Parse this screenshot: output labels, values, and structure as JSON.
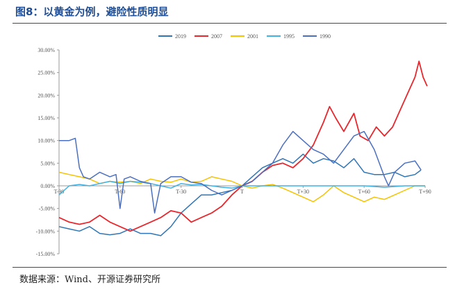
{
  "header": {
    "title": "图8：以黄金为例，避险性质明显"
  },
  "footer": {
    "source": "数据来源：Wind、开源证券研究所"
  },
  "chart_data": {
    "type": "line",
    "title": "",
    "xlabel": "",
    "ylabel": "",
    "ylim": [
      -15,
      30
    ],
    "y_ticks": [
      "30.00%",
      "25.00%",
      "20.00%",
      "15.00%",
      "10.00%",
      "5.00%",
      "0.00%",
      "-5.00%",
      "-10.00%",
      "-15.00%"
    ],
    "y_tick_values": [
      30,
      25,
      20,
      15,
      10,
      5,
      0,
      -5,
      -10,
      -15
    ],
    "xlim": [
      -90,
      90
    ],
    "x_ticks": [
      "T-90",
      "T-60",
      "T-30",
      "T",
      "T+30",
      "T+60",
      "T+90"
    ],
    "x_tick_values": [
      -90,
      -60,
      -30,
      0,
      30,
      60,
      90
    ],
    "grid": false,
    "legend": "top",
    "series": [
      {
        "name": "2019",
        "color": "#2e75b6",
        "points": [
          [
            -90,
            -9
          ],
          [
            -85,
            -9.5
          ],
          [
            -80,
            -10
          ],
          [
            -75,
            -9
          ],
          [
            -70,
            -10.5
          ],
          [
            -65,
            -10.8
          ],
          [
            -60,
            -10.5
          ],
          [
            -55,
            -9.5
          ],
          [
            -50,
            -10.5
          ],
          [
            -45,
            -10.5
          ],
          [
            -40,
            -11
          ],
          [
            -35,
            -9
          ],
          [
            -30,
            -6
          ],
          [
            -25,
            -4
          ],
          [
            -20,
            -2
          ],
          [
            -15,
            -2
          ],
          [
            -10,
            -1.5
          ],
          [
            -5,
            -1
          ],
          [
            0,
            0
          ],
          [
            5,
            2
          ],
          [
            10,
            4
          ],
          [
            15,
            5
          ],
          [
            20,
            6
          ],
          [
            25,
            5
          ],
          [
            30,
            7
          ],
          [
            35,
            5
          ],
          [
            40,
            6
          ],
          [
            45,
            5.5
          ],
          [
            50,
            4
          ],
          [
            55,
            6
          ],
          [
            60,
            3
          ],
          [
            65,
            2.5
          ],
          [
            70,
            2.5
          ],
          [
            75,
            3
          ],
          [
            80,
            2
          ],
          [
            85,
            2.5
          ],
          [
            88,
            3.5
          ]
        ]
      },
      {
        "name": "2007",
        "color": "#e8262c",
        "points": [
          [
            -90,
            -7
          ],
          [
            -85,
            -8
          ],
          [
            -80,
            -8.5
          ],
          [
            -75,
            -8
          ],
          [
            -70,
            -6.5
          ],
          [
            -65,
            -8
          ],
          [
            -60,
            -9
          ],
          [
            -55,
            -10
          ],
          [
            -50,
            -9
          ],
          [
            -45,
            -8
          ],
          [
            -40,
            -7
          ],
          [
            -35,
            -5.5
          ],
          [
            -30,
            -6
          ],
          [
            -25,
            -8
          ],
          [
            -20,
            -7
          ],
          [
            -15,
            -6
          ],
          [
            -10,
            -4.5
          ],
          [
            -5,
            -2
          ],
          [
            0,
            0
          ],
          [
            5,
            1
          ],
          [
            10,
            3
          ],
          [
            15,
            4.5
          ],
          [
            20,
            5
          ],
          [
            25,
            4
          ],
          [
            30,
            6
          ],
          [
            35,
            9
          ],
          [
            40,
            14
          ],
          [
            43,
            17.5
          ],
          [
            46,
            15
          ],
          [
            50,
            12
          ],
          [
            55,
            16
          ],
          [
            58,
            11
          ],
          [
            62,
            10
          ],
          [
            66,
            13
          ],
          [
            70,
            11
          ],
          [
            74,
            13
          ],
          [
            78,
            17
          ],
          [
            82,
            21
          ],
          [
            85,
            24
          ],
          [
            87,
            27.5
          ],
          [
            89,
            24
          ],
          [
            91,
            22
          ]
        ]
      },
      {
        "name": "2001",
        "color": "#f5c200",
        "points": [
          [
            -90,
            3
          ],
          [
            -85,
            2.5
          ],
          [
            -80,
            2
          ],
          [
            -75,
            1.5
          ],
          [
            -70,
            0.5
          ],
          [
            -65,
            1
          ],
          [
            -60,
            0.8
          ],
          [
            -55,
            1
          ],
          [
            -50,
            0.5
          ],
          [
            -45,
            1.5
          ],
          [
            -40,
            1
          ],
          [
            -35,
            0.8
          ],
          [
            -30,
            1.5
          ],
          [
            -25,
            0.8
          ],
          [
            -20,
            1
          ],
          [
            -15,
            2
          ],
          [
            -10,
            1.5
          ],
          [
            -5,
            1
          ],
          [
            0,
            0
          ],
          [
            5,
            -0.5
          ],
          [
            10,
            0
          ],
          [
            15,
            0.3
          ],
          [
            20,
            -0.5
          ],
          [
            25,
            -1.5
          ],
          [
            30,
            -2.5
          ],
          [
            35,
            -3.5
          ],
          [
            40,
            -2
          ],
          [
            45,
            0
          ],
          [
            50,
            -1.5
          ],
          [
            55,
            -2.5
          ],
          [
            60,
            -3.5
          ],
          [
            65,
            -2.5
          ],
          [
            70,
            -3
          ],
          [
            75,
            -2
          ],
          [
            80,
            -1
          ],
          [
            85,
            0
          ],
          [
            90,
            0
          ]
        ]
      },
      {
        "name": "1995",
        "color": "#3fb1e3",
        "points": [
          [
            -90,
            -2
          ],
          [
            -85,
            0
          ],
          [
            -80,
            0.3
          ],
          [
            -75,
            0
          ],
          [
            -70,
            0.5
          ],
          [
            -65,
            1
          ],
          [
            -60,
            0.5
          ],
          [
            -55,
            1
          ],
          [
            -50,
            0.8
          ],
          [
            -45,
            0.5
          ],
          [
            -40,
            0
          ],
          [
            -35,
            -0.5
          ],
          [
            -30,
            0.5
          ],
          [
            -25,
            0.2
          ],
          [
            -20,
            0.3
          ],
          [
            -15,
            0
          ],
          [
            -10,
            -0.3
          ],
          [
            -5,
            -0.5
          ],
          [
            0,
            0
          ],
          [
            10,
            0
          ],
          [
            20,
            0
          ],
          [
            30,
            0
          ],
          [
            40,
            0
          ],
          [
            50,
            0
          ],
          [
            60,
            0
          ],
          [
            70,
            -0.3
          ],
          [
            80,
            0
          ],
          [
            90,
            0
          ]
        ]
      },
      {
        "name": "1990",
        "color": "#4a6fbf",
        "points": [
          [
            -90,
            10
          ],
          [
            -85,
            10
          ],
          [
            -82,
            10.5
          ],
          [
            -80,
            4
          ],
          [
            -78,
            2
          ],
          [
            -75,
            1.5
          ],
          [
            -70,
            3
          ],
          [
            -65,
            2
          ],
          [
            -62,
            2.5
          ],
          [
            -60,
            -5
          ],
          [
            -58,
            1.5
          ],
          [
            -55,
            2
          ],
          [
            -50,
            1
          ],
          [
            -45,
            0.5
          ],
          [
            -43,
            -6
          ],
          [
            -40,
            0.5
          ],
          [
            -35,
            2
          ],
          [
            -30,
            2
          ],
          [
            -25,
            0.8
          ],
          [
            -20,
            0.5
          ],
          [
            -15,
            -1
          ],
          [
            -10,
            -2
          ],
          [
            -5,
            -1
          ],
          [
            0,
            0
          ],
          [
            5,
            1
          ],
          [
            10,
            3
          ],
          [
            15,
            5
          ],
          [
            20,
            9
          ],
          [
            25,
            12
          ],
          [
            30,
            10
          ],
          [
            35,
            8
          ],
          [
            40,
            7
          ],
          [
            45,
            5
          ],
          [
            50,
            8
          ],
          [
            55,
            11
          ],
          [
            60,
            12
          ],
          [
            65,
            8
          ],
          [
            70,
            2
          ],
          [
            72,
            0
          ],
          [
            75,
            3
          ],
          [
            80,
            5
          ],
          [
            85,
            5.5
          ],
          [
            88,
            3.5
          ]
        ]
      }
    ]
  }
}
